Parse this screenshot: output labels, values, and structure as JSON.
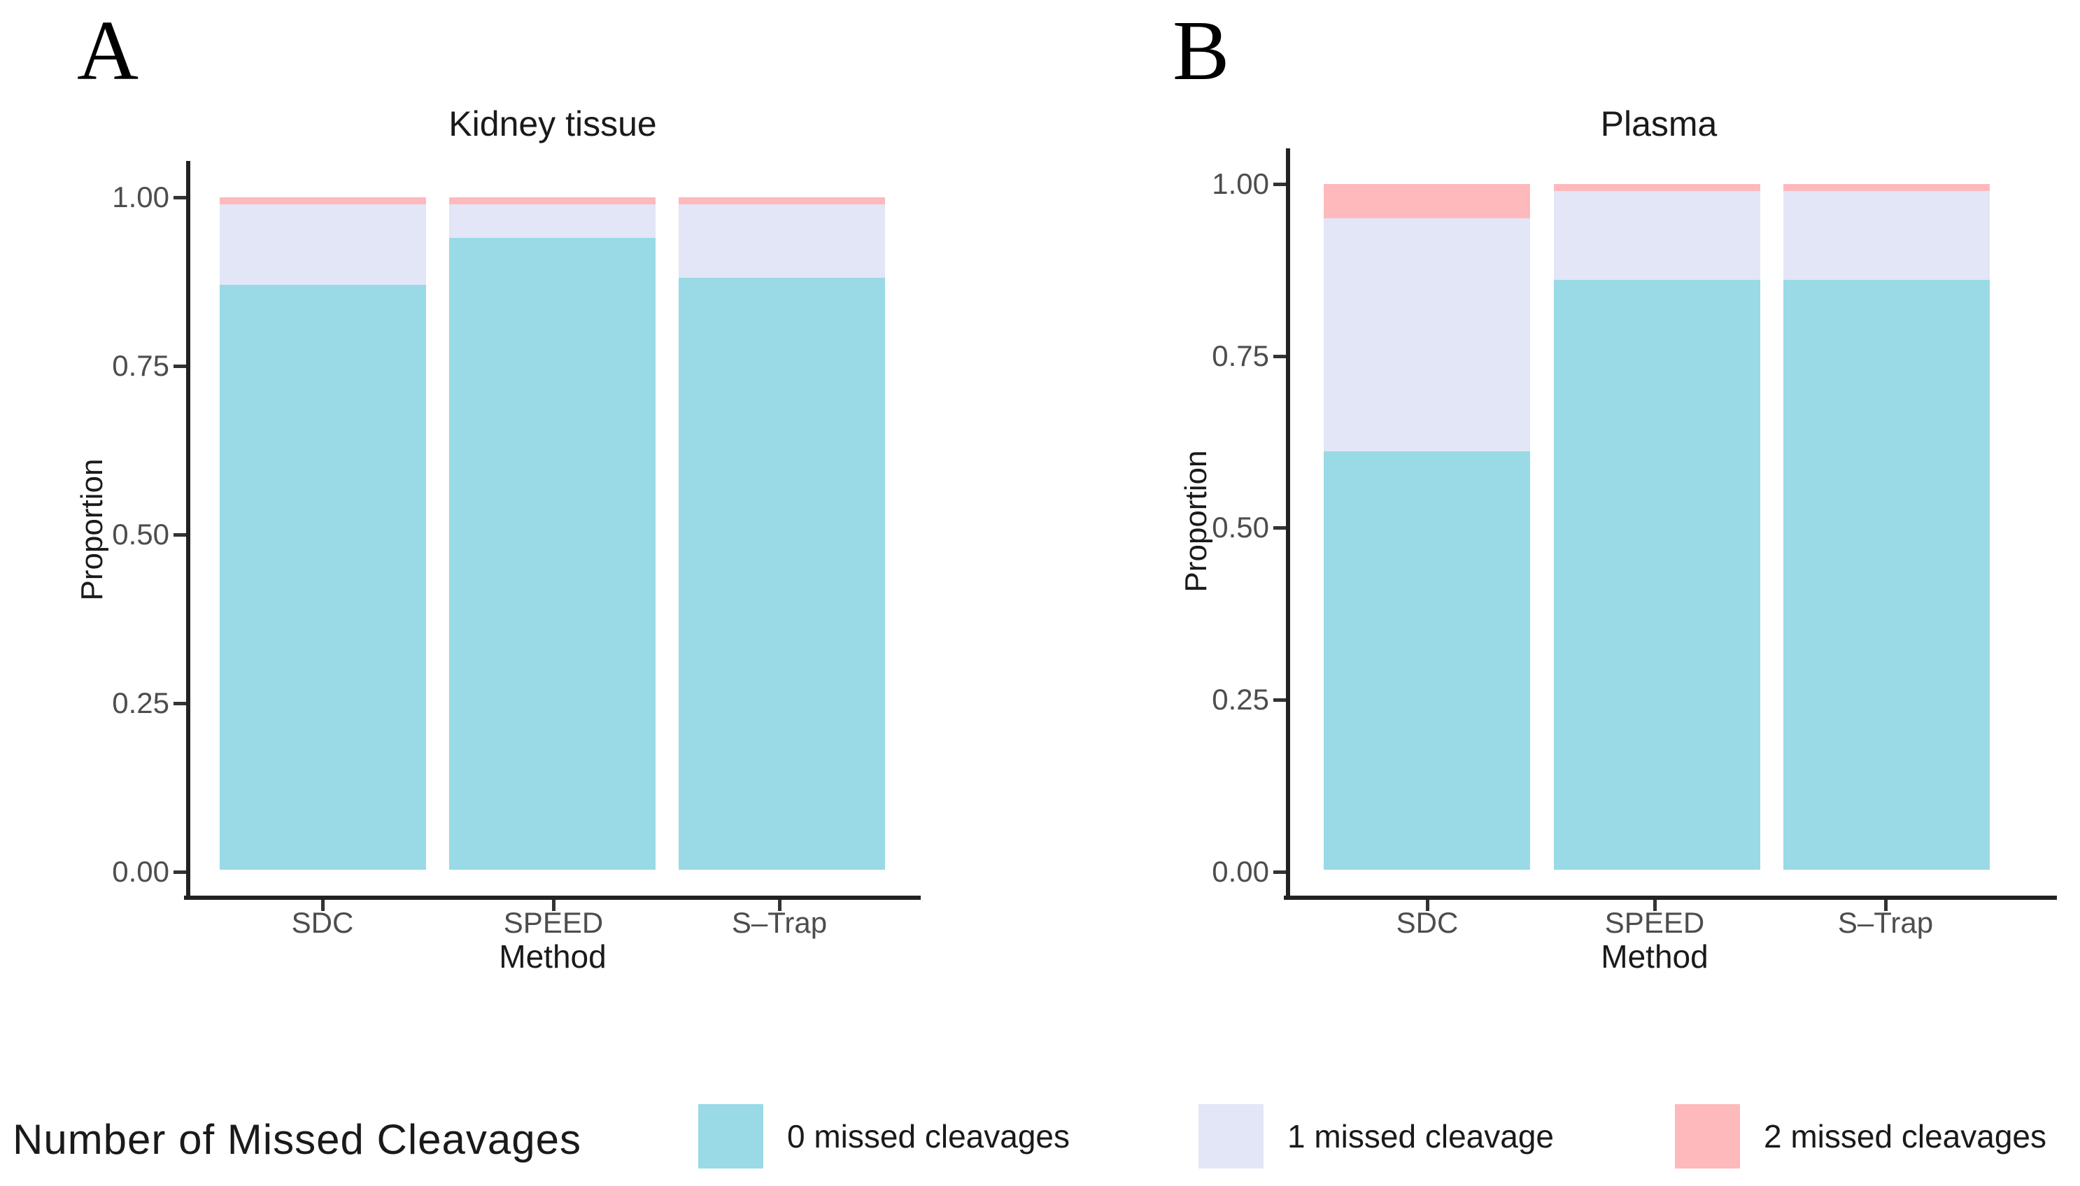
{
  "figure": {
    "background": "#ffffff"
  },
  "panels": [
    {
      "letter": "A"
    },
    {
      "letter": "B"
    }
  ],
  "chart_data": [
    {
      "type": "bar",
      "subtype": "stacked-proportion",
      "title": "Kidney tissue",
      "xlabel": "Method",
      "ylabel": "Proportion",
      "categories": [
        "SDC",
        "SPEED",
        "S–Trap"
      ],
      "ytick_labels": [
        "1.00",
        "0.75",
        "0.50",
        "0.25",
        "0.00"
      ],
      "ylim": [
        0,
        1
      ],
      "grid": false,
      "legend_position": "bottom",
      "series": [
        {
          "name": "0 missed cleavages",
          "values": [
            0.87,
            0.94,
            0.88
          ]
        },
        {
          "name": "1 missed cleavage",
          "values": [
            0.12,
            0.05,
            0.11
          ]
        },
        {
          "name": "2 missed cleavages",
          "values": [
            0.01,
            0.01,
            0.01
          ]
        }
      ]
    },
    {
      "type": "bar",
      "subtype": "stacked-proportion",
      "title": "Plasma",
      "xlabel": "Method",
      "ylabel": "Proportion",
      "categories": [
        "SDC",
        "SPEED",
        "S–Trap"
      ],
      "ytick_labels": [
        "1.00",
        "0.75",
        "0.50",
        "0.25",
        "0.00"
      ],
      "ylim": [
        0,
        1
      ],
      "grid": false,
      "legend_position": "bottom",
      "series": [
        {
          "name": "0 missed cleavages",
          "values": [
            0.61,
            0.86,
            0.86
          ]
        },
        {
          "name": "1 missed cleavage",
          "values": [
            0.34,
            0.13,
            0.13
          ]
        },
        {
          "name": "2 missed cleavages",
          "values": [
            0.05,
            0.01,
            0.01
          ]
        }
      ]
    }
  ],
  "legend": {
    "title": "Number of Missed Cleavages",
    "items": [
      {
        "label": "0 missed cleavages",
        "color": "#99dae6"
      },
      {
        "label": "1 missed cleavage",
        "color": "#e3e6f6"
      },
      {
        "label": "2 missed cleavages",
        "color": "#feb9bd"
      }
    ]
  }
}
